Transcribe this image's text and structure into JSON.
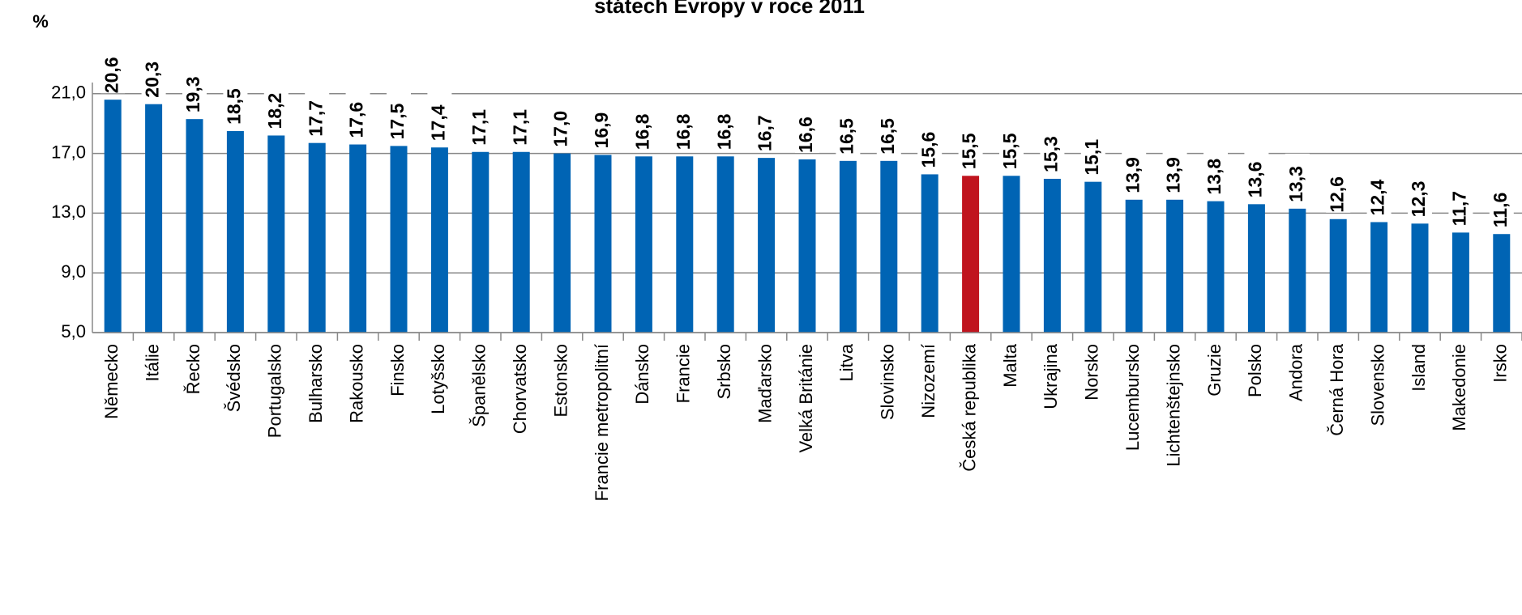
{
  "chart_data": {
    "type": "bar",
    "title": "státech Evropy v roce 2011",
    "y_label": "%",
    "categories": [
      "Německo",
      "Itálie",
      "Řecko",
      "Švédsko",
      "Portugalsko",
      "Bulharsko",
      "Rakousko",
      "Finsko",
      "Lotyšsko",
      "Španělsko",
      "Chorvatsko",
      "Estonsko",
      "Francie metropolitní",
      "Dánsko",
      "Francie",
      "Srbsko",
      "Maďarsko",
      "Velká Británie",
      "Litva",
      "Slovinsko",
      "Nizozemí",
      "Česká republika",
      "Malta",
      "Ukrajina",
      "Norsko",
      "Lucembursko",
      "Lichtenštejnsko",
      "Gruzie",
      "Polsko",
      "Andora",
      "Černá Hora",
      "Slovensko",
      "Island",
      "Makedonie",
      "Irsko"
    ],
    "values": [
      20.6,
      20.3,
      19.3,
      18.5,
      18.2,
      17.7,
      17.6,
      17.5,
      17.4,
      17.1,
      17.1,
      17.0,
      16.9,
      16.8,
      16.8,
      16.8,
      16.7,
      16.6,
      16.5,
      16.5,
      15.6,
      15.5,
      15.5,
      15.3,
      15.1,
      13.9,
      13.9,
      13.8,
      13.6,
      13.3,
      12.6,
      12.4,
      12.3,
      11.7,
      11.6
    ],
    "value_labels": [
      "20,6",
      "20,3",
      "19,3",
      "18,5",
      "18,2",
      "17,7",
      "17,6",
      "17,5",
      "17,4",
      "17,1",
      "17,1",
      "17,0",
      "16,9",
      "16,8",
      "16,8",
      "16,8",
      "16,7",
      "16,6",
      "16,5",
      "16,5",
      "15,6",
      "15,5",
      "15,5",
      "15,3",
      "15,1",
      "13,9",
      "13,9",
      "13,8",
      "13,6",
      "13,3",
      "12,6",
      "12,4",
      "12,3",
      "11,7",
      "11,6"
    ],
    "colors": [
      "#0064b4",
      "#0064b4",
      "#0064b4",
      "#0064b4",
      "#0064b4",
      "#0064b4",
      "#0064b4",
      "#0064b4",
      "#0064b4",
      "#0064b4",
      "#0064b4",
      "#0064b4",
      "#0064b4",
      "#0064b4",
      "#0064b4",
      "#0064b4",
      "#0064b4",
      "#0064b4",
      "#0064b4",
      "#0064b4",
      "#0064b4",
      "#c0141e",
      "#0064b4",
      "#0064b4",
      "#0064b4",
      "#0064b4",
      "#0064b4",
      "#0064b4",
      "#0064b4",
      "#0064b4",
      "#0064b4",
      "#0064b4",
      "#0064b4",
      "#0064b4",
      "#0064b4"
    ],
    "ylim": [
      5,
      25
    ],
    "yticks": [
      {
        "value": 5,
        "label": "5,0"
      },
      {
        "value": 9,
        "label": "9,0"
      },
      {
        "value": 13,
        "label": "13,0"
      },
      {
        "value": 17,
        "label": "17,0"
      },
      {
        "value": 21,
        "label": "21,0"
      }
    ],
    "grid": true
  }
}
